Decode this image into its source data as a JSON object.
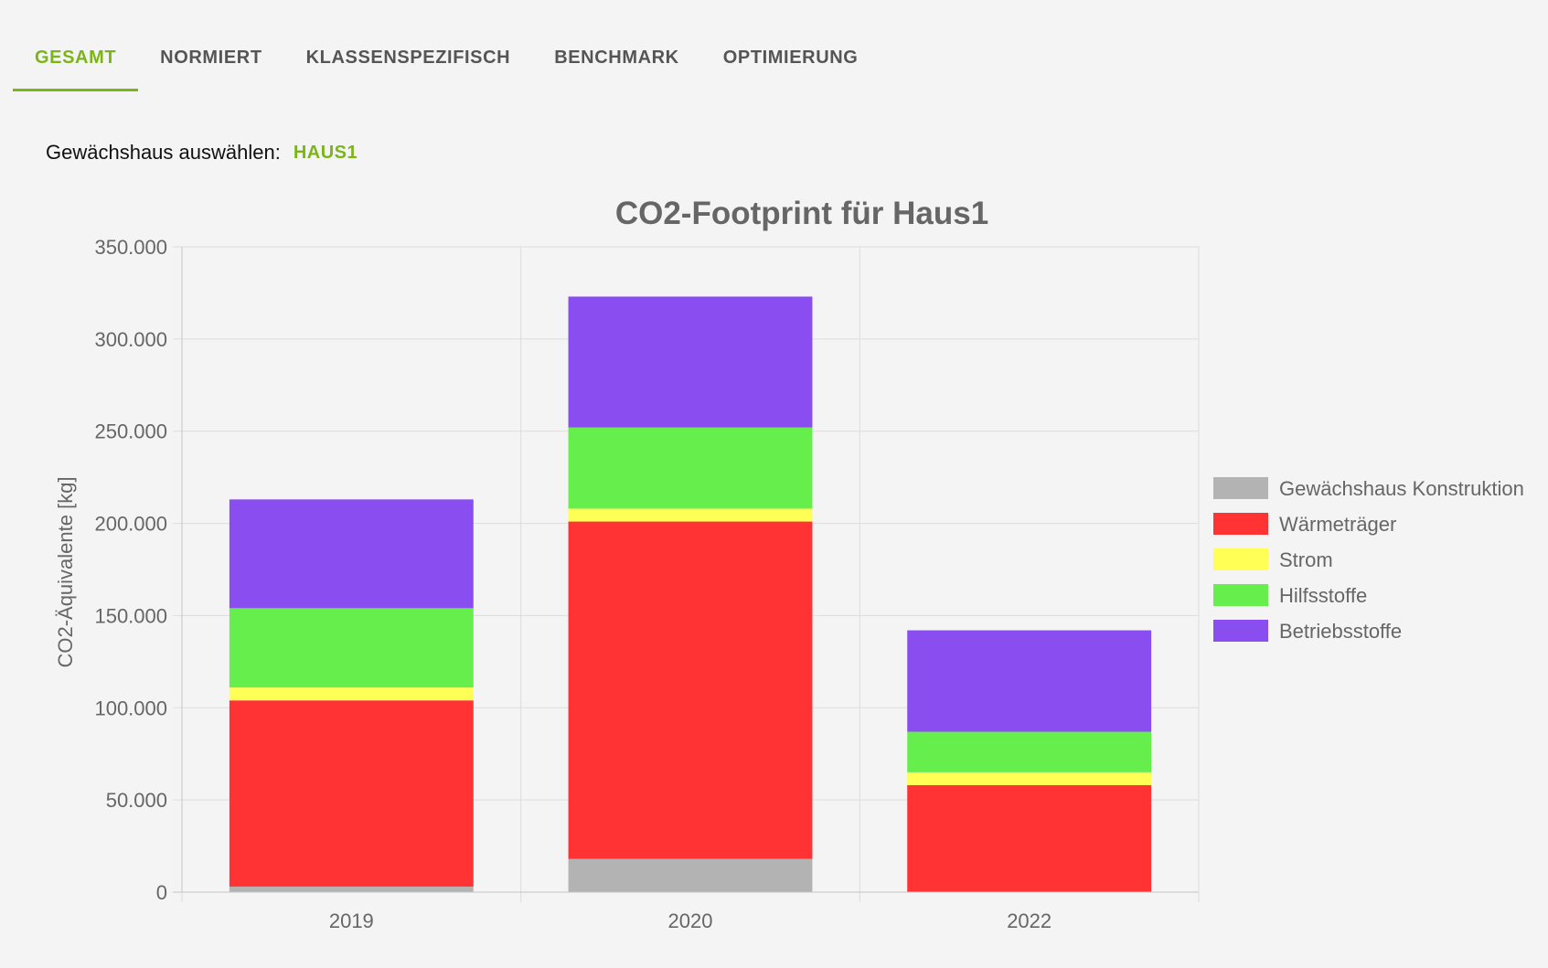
{
  "tabs": [
    {
      "label": "GESAMT",
      "active": true
    },
    {
      "label": "NORMIERT",
      "active": false
    },
    {
      "label": "KLASSENSPEZIFISCH",
      "active": false
    },
    {
      "label": "BENCHMARK",
      "active": false
    },
    {
      "label": "OPTIMIERUNG",
      "active": false
    }
  ],
  "selector": {
    "label": "Gewächshaus auswählen:",
    "value": "HAUS1"
  },
  "colors": {
    "accent": "#7cb518",
    "tab_text": "#555555"
  },
  "chart_data": {
    "type": "bar",
    "stacked": true,
    "title": "CO2-Footprint für Haus1",
    "xlabel": "",
    "ylabel": "CO2-Äquivalente [kg]",
    "ylim": [
      0,
      350000
    ],
    "yticks": [
      0,
      50000,
      100000,
      150000,
      200000,
      250000,
      300000,
      350000
    ],
    "ytick_labels": [
      "0",
      "50.000",
      "100.000",
      "150.000",
      "200.000",
      "250.000",
      "300.000",
      "350.000"
    ],
    "categories": [
      "2019",
      "2020",
      "2022"
    ],
    "grid": true,
    "legend_position": "right",
    "series": [
      {
        "name": "Gewächshaus Konstruktion",
        "color": "#b3b3b3",
        "values": [
          3000,
          18000,
          0
        ]
      },
      {
        "name": "Wärmeträger",
        "color": "#ff3333",
        "values": [
          101000,
          183000,
          58000
        ]
      },
      {
        "name": "Strom",
        "color": "#ffff55",
        "values": [
          7000,
          7000,
          7000
        ]
      },
      {
        "name": "Hilfsstoffe",
        "color": "#66ee4c",
        "values": [
          43000,
          44000,
          22000
        ]
      },
      {
        "name": "Betriebsstoffe",
        "color": "#8a4ef0",
        "values": [
          59000,
          71000,
          55000
        ]
      }
    ]
  }
}
